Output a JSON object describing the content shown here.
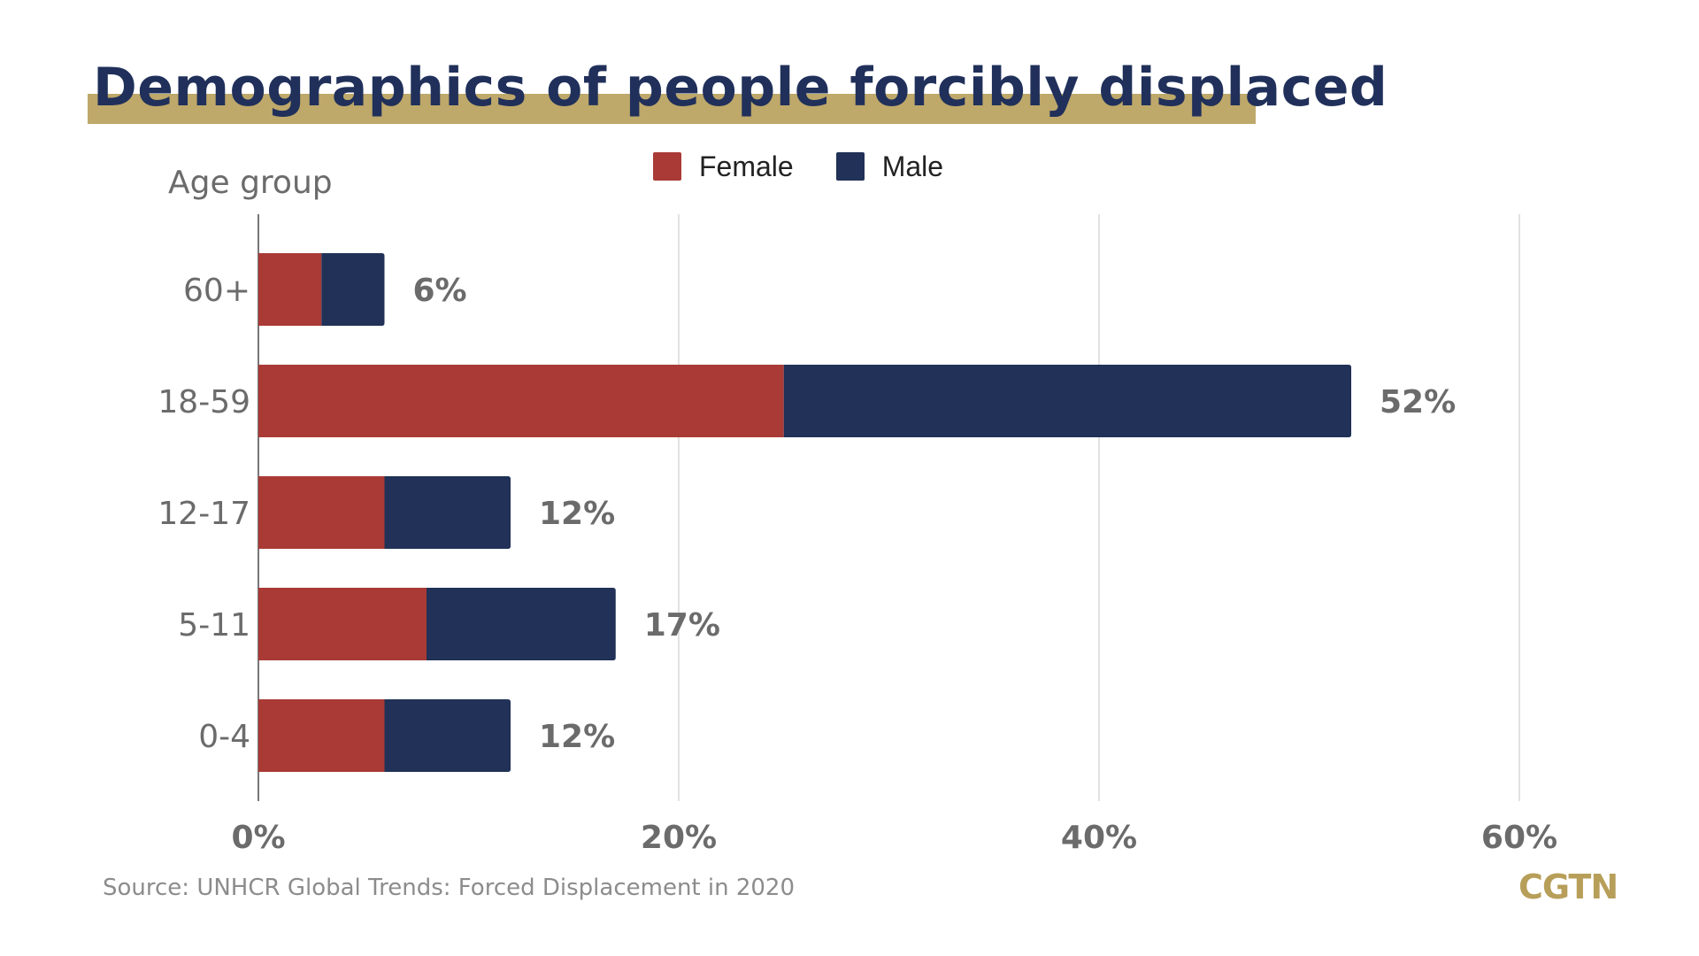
{
  "header": {
    "title": "Demographics of people forcibly displaced"
  },
  "legend": {
    "female_label": "Female",
    "male_label": "Male"
  },
  "chart_data": {
    "type": "bar",
    "orientation": "horizontal",
    "stacked": true,
    "title": "Demographics of people forcibly displaced",
    "ylabel": "Age group",
    "xlabel": "",
    "categories": [
      "60+",
      "18-59",
      "12-17",
      "5-11",
      "0-4"
    ],
    "series": [
      {
        "name": "Female",
        "color": "#a93a35",
        "values": [
          3,
          25,
          6,
          8,
          6
        ]
      },
      {
        "name": "Male",
        "color": "#213157",
        "values": [
          3,
          27,
          6,
          9,
          6
        ]
      }
    ],
    "totals": [
      6,
      52,
      12,
      17,
      12
    ],
    "total_labels": [
      "6%",
      "52%",
      "12%",
      "17%",
      "12%"
    ],
    "xlim": [
      0,
      60
    ],
    "xticks": [
      0,
      20,
      40,
      60
    ],
    "xtick_labels": [
      "0%",
      "20%",
      "40%",
      "60%"
    ],
    "grid": true,
    "legend_position": "top-center"
  },
  "footer": {
    "source": "Source: UNHCR Global Trends: Forced Displacement in 2020",
    "brand": "CGTN"
  }
}
